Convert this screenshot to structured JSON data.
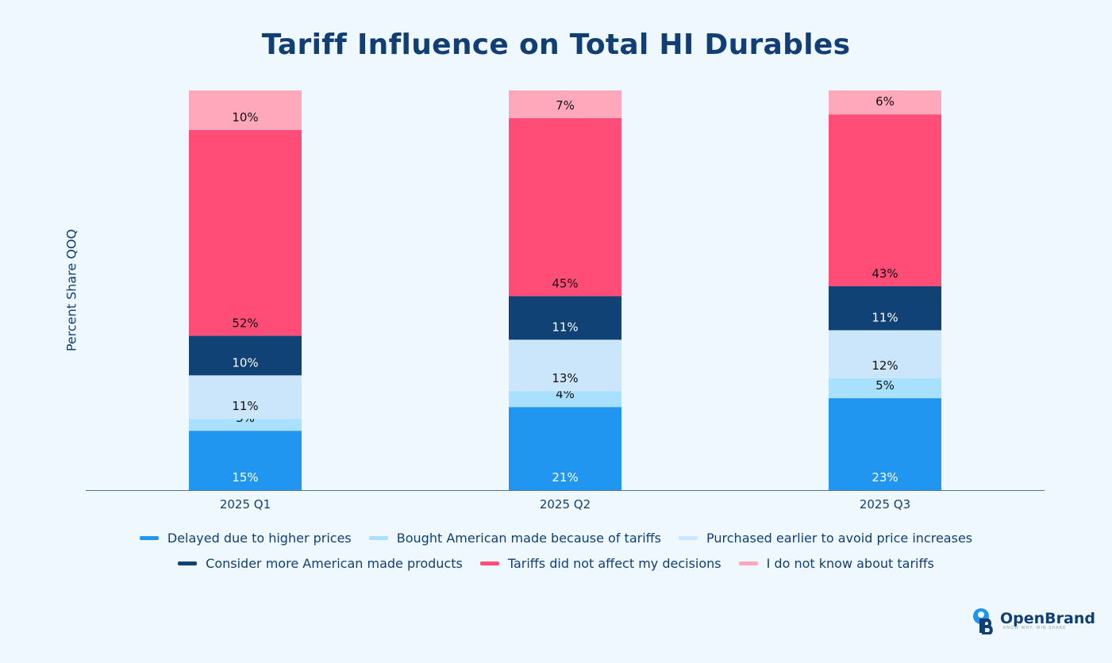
{
  "chart_data": {
    "type": "bar",
    "stacked": true,
    "title": "Tariff Influence on Total HI Durables",
    "ylabel": "Percent Share QOQ",
    "xlabel": "",
    "categories": [
      "2025 Q1",
      "2025 Q2",
      "2025 Q3"
    ],
    "series": [
      {
        "name": "Delayed due to higher prices",
        "color": "#2196f0",
        "label_color": "#ffffff",
        "values": [
          15,
          21,
          23
        ]
      },
      {
        "name": "Bought American made because of tariffs",
        "color": "#a8e0fd",
        "label_color": "#111111",
        "values": [
          3,
          4,
          5
        ]
      },
      {
        "name": "Purchased earlier to avoid price increases",
        "color": "#cbe5fa",
        "label_color": "#111111",
        "values": [
          11,
          13,
          12
        ]
      },
      {
        "name": "Consider more American made products",
        "color": "#114275",
        "label_color": "#ffffff",
        "values": [
          10,
          11,
          11
        ]
      },
      {
        "name": "Tariffs did not affect my decisions",
        "color": "#ff4d77",
        "label_color": "#111111",
        "values": [
          52,
          45,
          43
        ]
      },
      {
        "name": "I do not know about tariffs",
        "color": "#ffa8bc",
        "label_color": "#111111",
        "values": [
          10,
          7,
          6
        ]
      }
    ],
    "legend_position": "bottom",
    "grid": false
  },
  "logo": {
    "name": "OpenBrand",
    "tagline": "KNOW WHY. WIN SHARE."
  }
}
